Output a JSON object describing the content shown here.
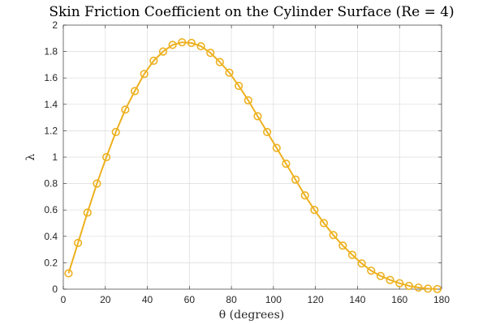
{
  "chart_data": {
    "type": "line",
    "title": "Skin Friction Coefficient on the Cylinder Surface (Re = 4)",
    "xlabel": "θ (degrees)",
    "ylabel": "λ",
    "xlim": [
      0,
      180
    ],
    "ylim": [
      0,
      2
    ],
    "xticks": [
      0,
      20,
      40,
      60,
      80,
      100,
      120,
      140,
      160,
      180
    ],
    "yticks": [
      0,
      0.2,
      0.4,
      0.6,
      0.8,
      1,
      1.2,
      1.4,
      1.6,
      1.8,
      2
    ],
    "xtick_labels": [
      "0",
      "20",
      "40",
      "60",
      "80",
      "100",
      "120",
      "140",
      "160",
      "180"
    ],
    "ytick_labels": [
      "0",
      "0.2",
      "0.4",
      "0.6",
      "0.8",
      "1",
      "1.2",
      "1.4",
      "1.6",
      "1.8",
      "2"
    ],
    "grid": true,
    "color": "#EDB120",
    "marker": "circle",
    "series": [
      {
        "x": [
          2.5,
          7,
          11.5,
          16,
          20.5,
          25,
          29.5,
          34,
          38.5,
          43,
          47.5,
          52,
          56.5,
          61,
          65.5,
          70,
          74.5,
          79,
          83.5,
          88,
          92.5,
          97,
          101.5,
          106,
          110.5,
          115,
          119.5,
          124,
          128.5,
          133,
          137.5,
          142,
          146.5,
          151,
          155.5,
          160,
          164.5,
          169,
          173.5,
          178
        ],
        "y": [
          0.12,
          0.35,
          0.58,
          0.8,
          1.0,
          1.19,
          1.36,
          1.5,
          1.63,
          1.73,
          1.8,
          1.85,
          1.87,
          1.865,
          1.84,
          1.79,
          1.72,
          1.64,
          1.54,
          1.43,
          1.31,
          1.19,
          1.07,
          0.95,
          0.83,
          0.71,
          0.6,
          0.5,
          0.41,
          0.33,
          0.26,
          0.195,
          0.14,
          0.1,
          0.07,
          0.045,
          0.025,
          0.012,
          0.004,
          0.001
        ]
      }
    ]
  }
}
